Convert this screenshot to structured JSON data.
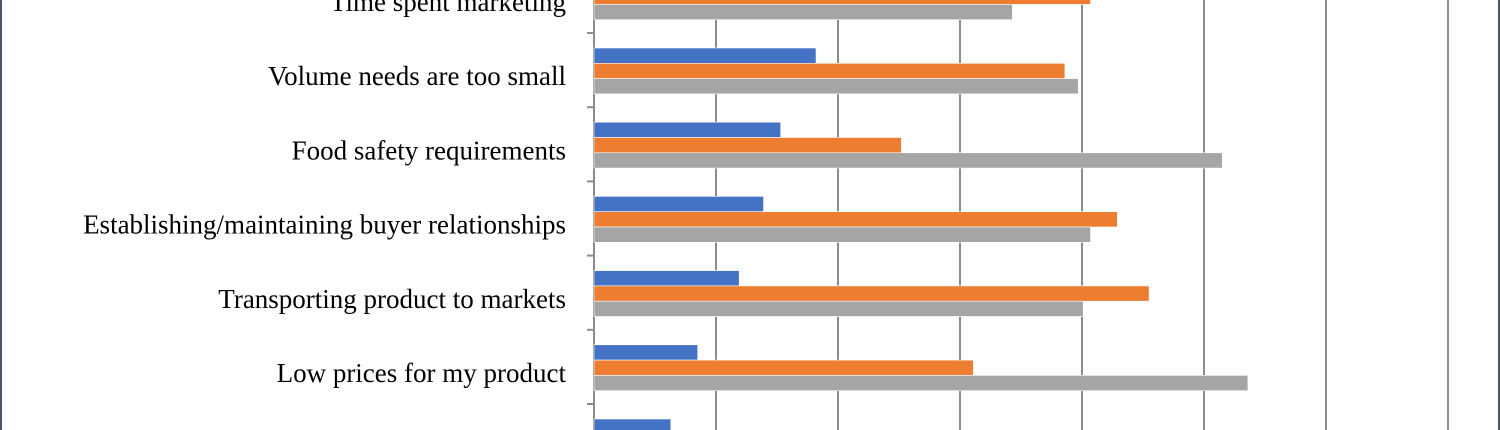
{
  "chart_data": {
    "type": "bar",
    "orientation": "horizontal",
    "title": "",
    "xlabel": "",
    "ylabel": "",
    "xlim": [
      0,
      7
    ],
    "x_tick_labels": [],
    "grid": "vertical",
    "legend": "not visible",
    "categories": [
      "Time spent marketing",
      "Volume needs are too small",
      "Food safety requirements",
      "Establishing/maintaining buyer relationships",
      "Transporting product to markets",
      "Low prices for my product",
      ""
    ],
    "series": [
      {
        "color": "#4472c4",
        "values": [
          null,
          1.82,
          1.53,
          1.39,
          1.19,
          0.85,
          0.63
        ]
      },
      {
        "color": "#ed7d31",
        "values": [
          4.07,
          3.86,
          2.52,
          4.29,
          4.55,
          3.11,
          null
        ]
      },
      {
        "color": "#a5a5a5",
        "values": [
          3.43,
          3.97,
          5.15,
          4.07,
          4.01,
          5.36,
          null
        ]
      }
    ]
  }
}
